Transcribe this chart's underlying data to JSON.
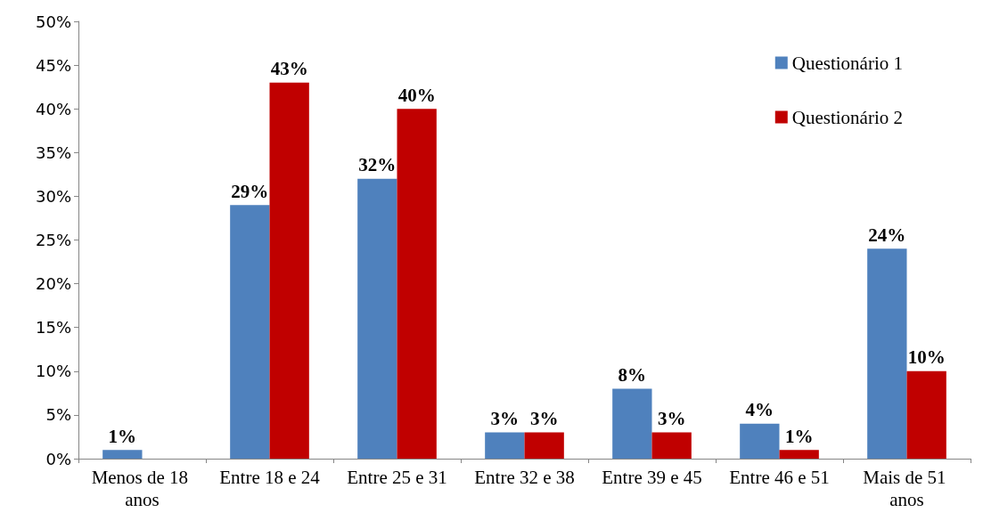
{
  "chart_data": {
    "type": "bar",
    "categories": [
      "Menos de 18 anos",
      "Entre 18 e 24",
      "Entre 25 e 31",
      "Entre 32 e 38",
      "Entre 39 e 45",
      "Entre 46 e 51",
      "Mais de 51 anos"
    ],
    "series": [
      {
        "name": "Questionário 1",
        "color": "#4f81bd",
        "values": [
          1,
          29,
          32,
          3,
          8,
          4,
          24
        ],
        "value_labels": [
          "1%",
          "29%",
          "32%",
          "3%",
          "8%",
          "4%",
          "24%"
        ]
      },
      {
        "name": "Questionário 2",
        "color": "#c00000",
        "values": [
          0,
          43,
          40,
          3,
          3,
          1,
          10
        ],
        "value_labels": [
          null,
          "43%",
          "40%",
          "3%",
          "3%",
          "1%",
          "10%"
        ]
      }
    ],
    "ylim": [
      0,
      50
    ],
    "yticks": [
      {
        "value": 0,
        "label": "0%"
      },
      {
        "value": 5,
        "label": "5%"
      },
      {
        "value": 10,
        "label": "10%"
      },
      {
        "value": 15,
        "label": "15%"
      },
      {
        "value": 20,
        "label": "20%"
      },
      {
        "value": 25,
        "label": "25%"
      },
      {
        "value": 30,
        "label": "30%"
      },
      {
        "value": 35,
        "label": "35%"
      },
      {
        "value": 40,
        "label": "40%"
      },
      {
        "value": 45,
        "label": "45%"
      },
      {
        "value": 50,
        "label": "50%"
      }
    ],
    "grid": false,
    "legend": "top right"
  }
}
